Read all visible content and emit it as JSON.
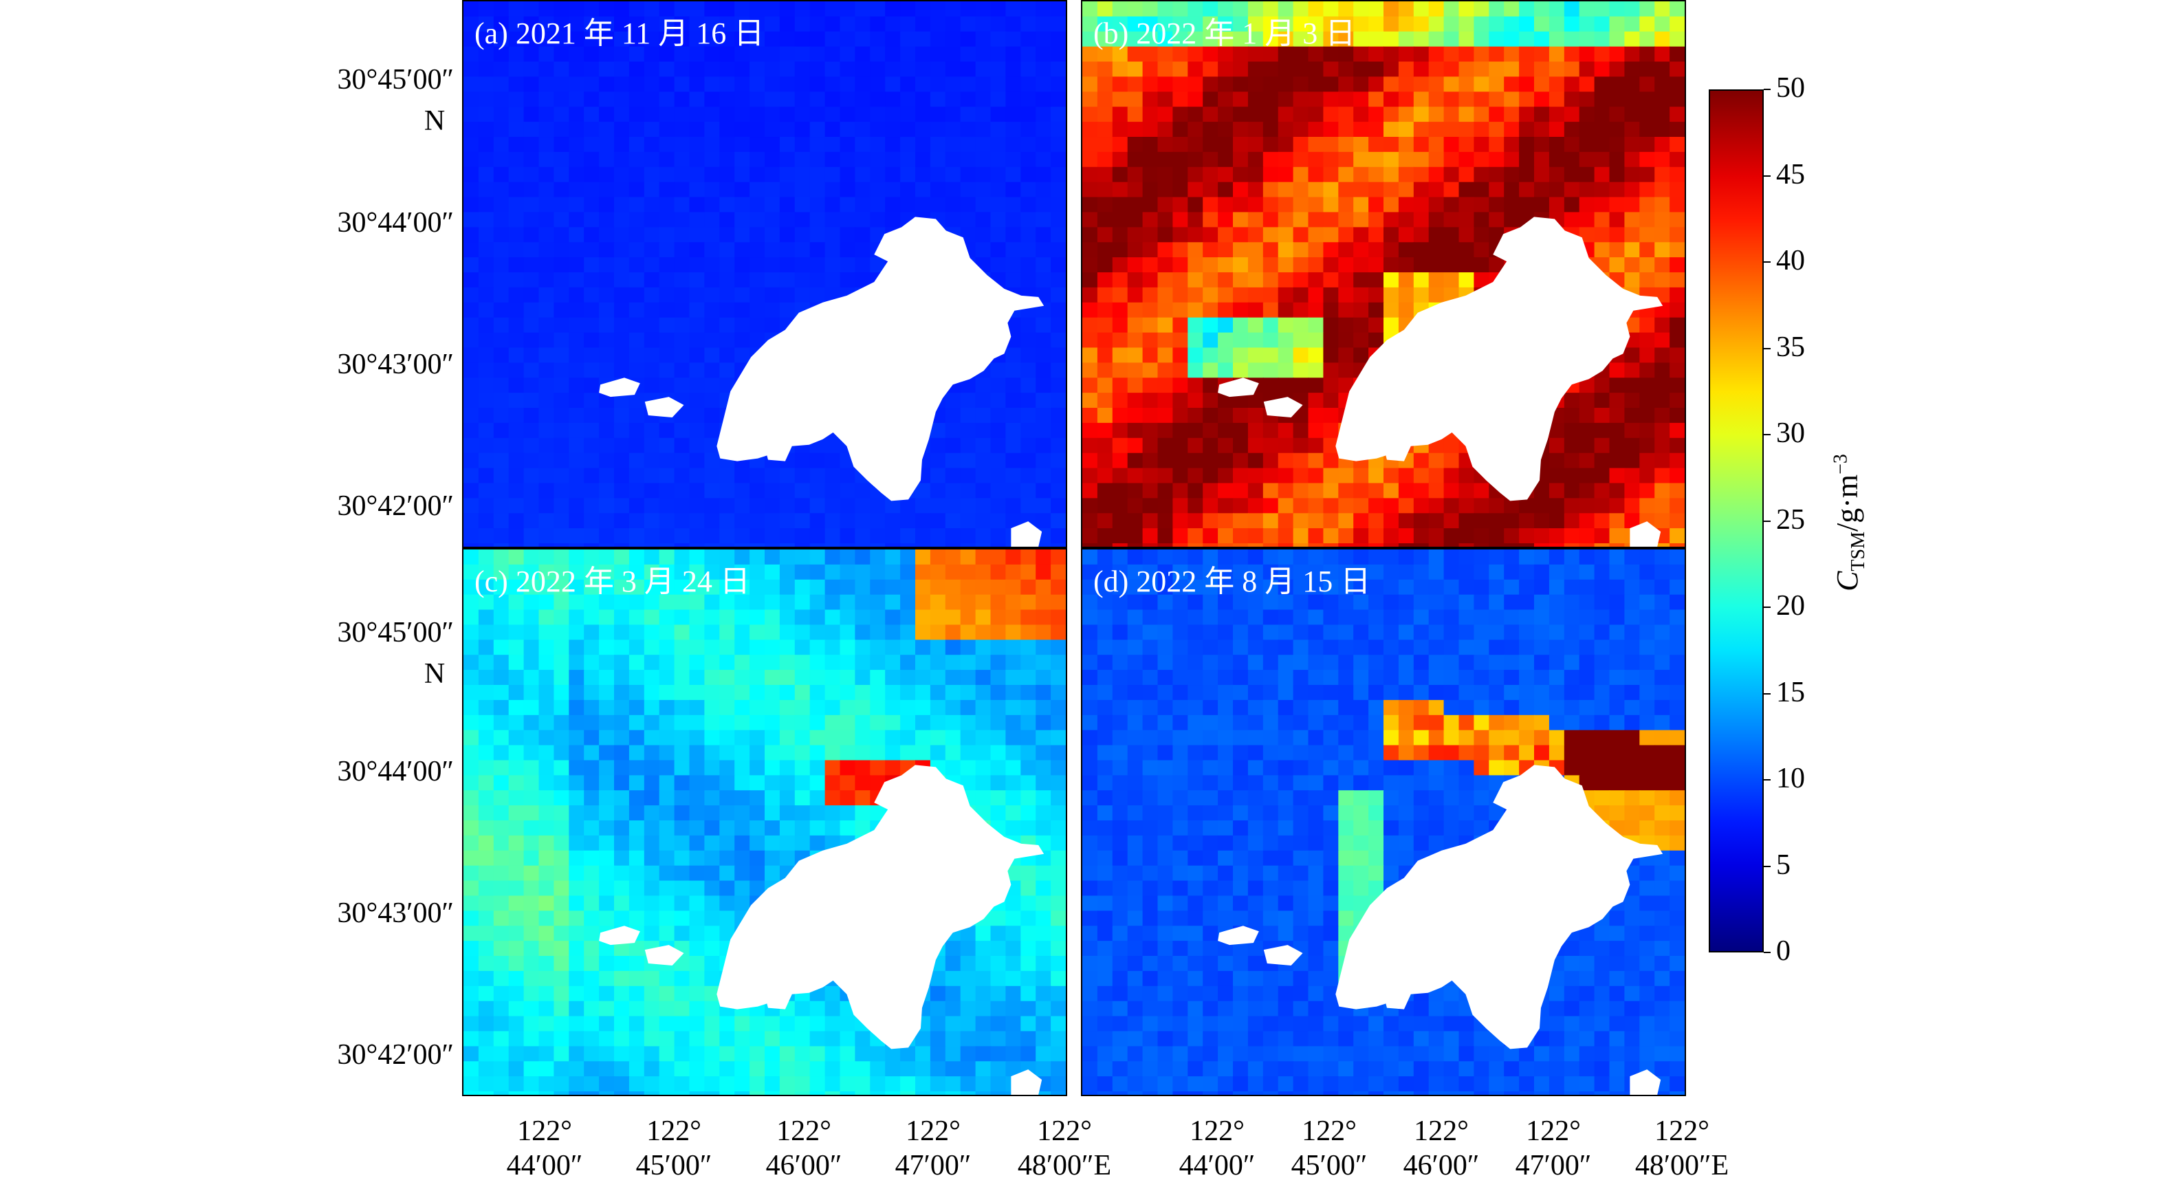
{
  "panels": [
    {
      "id": "a",
      "label": "(a) 2021 年 11 月 16 日",
      "scheme": "low"
    },
    {
      "id": "b",
      "label": "(b) 2022 年 1 月 3 日",
      "scheme": "high"
    },
    {
      "id": "c",
      "label": "(c) 2022 年 3 月 24 日",
      "scheme": "medium"
    },
    {
      "id": "d",
      "label": "(d) 2022 年 8 月 15 日",
      "scheme": "mixed"
    }
  ],
  "y_axis": {
    "top_labels": [
      "30°45′00″",
      "30°44′00″",
      "30°43′00″",
      "30°42′00″"
    ],
    "bottom_labels": [
      "30°45′00″",
      "30°44′00″",
      "30°43′00″",
      "30°42′00″"
    ],
    "north_suffix": "N"
  },
  "x_axis": {
    "degree": "122°",
    "minutes": [
      "44′00″",
      "45′00″",
      "46′00″",
      "47′00″",
      "48′00″E"
    ]
  },
  "colorbar": {
    "title_main": "C",
    "title_sub": "TSM",
    "title_unit": "/g·m",
    "title_sup": "−3",
    "min": 0,
    "max": 50,
    "ticks": [
      "0",
      "5",
      "10",
      "15",
      "20",
      "25",
      "30",
      "35",
      "40",
      "45",
      "50"
    ],
    "colormap": "jet"
  }
}
